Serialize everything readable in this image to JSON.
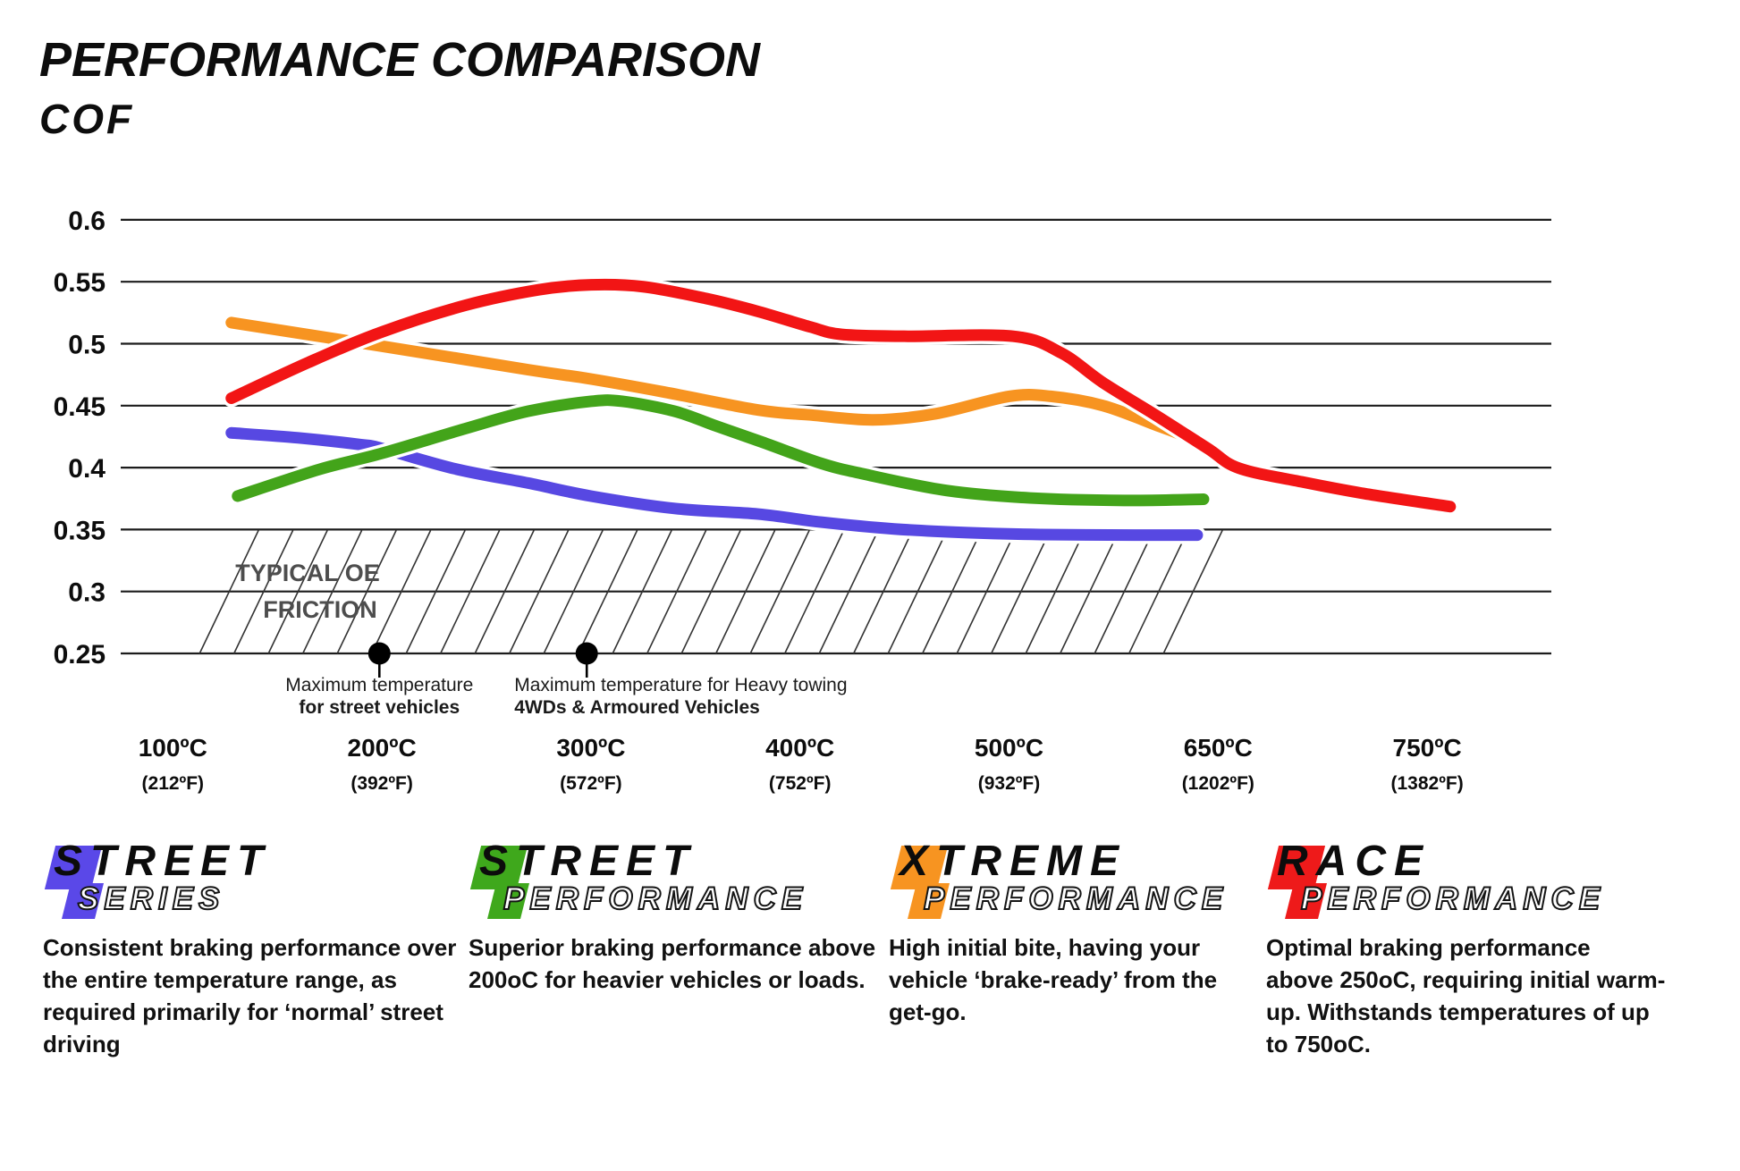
{
  "page": {
    "title": "PERFORMANCE COMPARISON",
    "axis_label": "COF"
  },
  "chart_data": {
    "type": "line",
    "title": "PERFORMANCE COMPARISON",
    "ylabel": "COF",
    "xlabel": "",
    "ylim": [
      0.25,
      0.6
    ],
    "grid": "horizontal",
    "y_ticks": [
      "0.6",
      "0.55",
      "0.5",
      "0.45",
      "0.4",
      "0.35",
      "0.3",
      "0.25"
    ],
    "x_tick_labels": [
      {
        "celsius": "100ºC",
        "fahrenheit": "(212ºF)"
      },
      {
        "celsius": "200ºC",
        "fahrenheit": "(392ºF)"
      },
      {
        "celsius": "300ºC",
        "fahrenheit": "(572ºF)"
      },
      {
        "celsius": "400ºC",
        "fahrenheit": "(752ºF)"
      },
      {
        "celsius": "500ºC",
        "fahrenheit": "(932ºF)"
      },
      {
        "celsius": "650ºC",
        "fahrenheit": "(1202ºF)"
      },
      {
        "celsius": "750ºC",
        "fahrenheit": "(1382ºF)"
      }
    ],
    "series": [
      {
        "name": "Street Series",
        "color": "#5748e2",
        "points": [
          [
            0.28,
            0.428
          ],
          [
            0.6,
            0.424
          ],
          [
            0.9,
            0.4185
          ],
          [
            1.0,
            0.4155
          ],
          [
            1.35,
            0.399
          ],
          [
            1.7,
            0.3875
          ],
          [
            2.0,
            0.377
          ],
          [
            2.4,
            0.367
          ],
          [
            2.8,
            0.3625
          ],
          [
            3.1,
            0.356
          ],
          [
            3.45,
            0.3505
          ],
          [
            3.8,
            0.3475
          ],
          [
            4.15,
            0.346
          ],
          [
            4.6,
            0.3455
          ],
          [
            4.9,
            0.3455
          ]
        ]
      },
      {
        "name": "Street Performance",
        "color": "#43a41a",
        "points": [
          [
            0.31,
            0.377
          ],
          [
            0.7,
            0.3985
          ],
          [
            1.0,
            0.4115
          ],
          [
            1.4,
            0.4315
          ],
          [
            1.7,
            0.4455
          ],
          [
            2.0,
            0.4535
          ],
          [
            2.15,
            0.4535
          ],
          [
            2.4,
            0.4455
          ],
          [
            2.6,
            0.4335
          ],
          [
            2.82,
            0.4205
          ],
          [
            3.1,
            0.4035
          ],
          [
            3.3,
            0.395
          ],
          [
            3.7,
            0.3815
          ],
          [
            4.1,
            0.3755
          ],
          [
            4.55,
            0.3735
          ],
          [
            4.93,
            0.3745
          ]
        ]
      },
      {
        "name": "Xtreme Performance",
        "color": "#f79421",
        "points": [
          [
            0.28,
            0.517
          ],
          [
            1.0,
            0.498
          ],
          [
            1.7,
            0.479
          ],
          [
            2.0,
            0.4715
          ],
          [
            2.35,
            0.461
          ],
          [
            2.8,
            0.4465
          ],
          [
            3.05,
            0.4425
          ],
          [
            3.35,
            0.4385
          ],
          [
            3.65,
            0.4435
          ],
          [
            4.0,
            0.4575
          ],
          [
            4.2,
            0.4575
          ],
          [
            4.45,
            0.45
          ],
          [
            4.7,
            0.4345
          ],
          [
            4.85,
            0.4245
          ],
          [
            4.97,
            0.4105
          ]
        ]
      },
      {
        "name": "Race Performance",
        "color": "#f21515",
        "points": [
          [
            0.28,
            0.456
          ],
          [
            0.65,
            0.485
          ],
          [
            1.0,
            0.5095
          ],
          [
            1.4,
            0.531
          ],
          [
            1.75,
            0.5435
          ],
          [
            2.0,
            0.5475
          ],
          [
            2.25,
            0.546
          ],
          [
            2.55,
            0.5365
          ],
          [
            2.8,
            0.526
          ],
          [
            3.05,
            0.5135
          ],
          [
            3.2,
            0.5075
          ],
          [
            3.5,
            0.506
          ],
          [
            4.02,
            0.506
          ],
          [
            4.25,
            0.4925
          ],
          [
            4.45,
            0.4685
          ],
          [
            4.7,
            0.4425
          ],
          [
            4.95,
            0.4155
          ],
          [
            5.1,
            0.3995
          ],
          [
            5.4,
            0.3885
          ],
          [
            5.7,
            0.379
          ],
          [
            6.11,
            0.3685
          ]
        ]
      }
    ],
    "oe_zone": {
      "label_lines": [
        "TYPICAL OE",
        "FRICTION"
      ],
      "cof_top": 0.35,
      "cof_bottom": 0.25,
      "u_start": 0.128,
      "u_end": 4.77,
      "text_color": "#4d4d4d"
    },
    "annotations": [
      {
        "u": 0.988,
        "align": "center",
        "lines": [
          "Maximum temperature",
          "for street vehicles"
        ]
      },
      {
        "u": 1.98,
        "align": "left",
        "lines": [
          "Maximum temperature for Heavy towing",
          "4WDs & Armoured Vehicles"
        ]
      }
    ]
  },
  "legend": {
    "items": [
      {
        "name": "STREET",
        "sub": "SERIES",
        "color": "#5a48e8",
        "description": "Consistent braking performance over\nthe entire temperature range, as\nrequired primarily for ‘normal’ street\ndriving"
      },
      {
        "name": "STREET",
        "sub": "PERFORMANCE",
        "color": "#3fa81c",
        "description": "Superior braking performance above\n200oC for heavier vehicles or loads."
      },
      {
        "name": "XTREME",
        "sub": "PERFORMANCE",
        "color": "#f79421",
        "description": "High initial bite, having your\nvehicle ‘brake-ready’ from the\nget-go."
      },
      {
        "name": "RACE",
        "sub": "PERFORMANCE",
        "color": "#ee1a1a",
        "description": "Optimal braking performance\nabove 250oC, requiring initial warm-\nup. Withstands temperatures of up\nto 750oC."
      }
    ]
  }
}
